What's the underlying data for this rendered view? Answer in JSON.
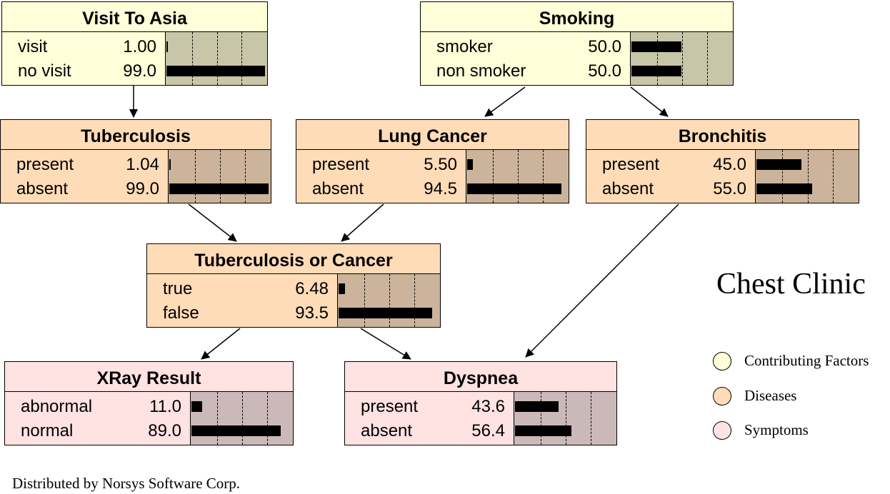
{
  "diagram_title": "Chest Clinic",
  "credit": "Distributed by Norsys Software Corp.",
  "colors": {
    "factor_bg": "#ffffd9",
    "factor_bar_bg": "#c8c6a8",
    "disease_bg": "#ffdcb8",
    "disease_bar_bg": "#cbb49b",
    "symptom_bg": "#ffe2e2",
    "symptom_bar_bg": "#cbb9b9"
  },
  "legend": [
    {
      "label": "Contributing Factors",
      "kind": "factor"
    },
    {
      "label": "Diseases",
      "kind": "disease"
    },
    {
      "label": "Symptoms",
      "kind": "symptom"
    }
  ],
  "nodes": [
    {
      "id": "visit",
      "name": "Visit To Asia",
      "kind": "factor",
      "states": [
        {
          "label": "visit",
          "value": "1.00",
          "pct": 1.0
        },
        {
          "label": "no visit",
          "value": "99.0",
          "pct": 99.0
        }
      ]
    },
    {
      "id": "smoking",
      "name": "Smoking",
      "kind": "factor",
      "states": [
        {
          "label": "smoker",
          "value": "50.0",
          "pct": 50.0
        },
        {
          "label": "non smoker",
          "value": "50.0",
          "pct": 50.0
        }
      ]
    },
    {
      "id": "tb",
      "name": "Tuberculosis",
      "kind": "disease",
      "states": [
        {
          "label": "present",
          "value": "1.04",
          "pct": 1.04
        },
        {
          "label": "absent",
          "value": "99.0",
          "pct": 99.0
        }
      ]
    },
    {
      "id": "cancer",
      "name": "Lung Cancer",
      "kind": "disease",
      "states": [
        {
          "label": "present",
          "value": "5.50",
          "pct": 5.5
        },
        {
          "label": "absent",
          "value": "94.5",
          "pct": 94.5
        }
      ]
    },
    {
      "id": "bronc",
      "name": "Bronchitis",
      "kind": "disease",
      "states": [
        {
          "label": "present",
          "value": "45.0",
          "pct": 45.0
        },
        {
          "label": "absent",
          "value": "55.0",
          "pct": 55.0
        }
      ]
    },
    {
      "id": "tbc",
      "name": "Tuberculosis or Cancer",
      "kind": "disease",
      "states": [
        {
          "label": "true",
          "value": "6.48",
          "pct": 6.48
        },
        {
          "label": "false",
          "value": "93.5",
          "pct": 93.5
        }
      ]
    },
    {
      "id": "xray",
      "name": "XRay Result",
      "kind": "symptom",
      "states": [
        {
          "label": "abnormal",
          "value": "11.0",
          "pct": 11.0
        },
        {
          "label": "normal",
          "value": "89.0",
          "pct": 89.0
        }
      ]
    },
    {
      "id": "dysp",
      "name": "Dyspnea",
      "kind": "symptom",
      "states": [
        {
          "label": "present",
          "value": "43.6",
          "pct": 43.6
        },
        {
          "label": "absent",
          "value": "56.4",
          "pct": 56.4
        }
      ]
    }
  ],
  "edges": [
    {
      "from": "visit",
      "to": "tb"
    },
    {
      "from": "smoking",
      "to": "cancer"
    },
    {
      "from": "smoking",
      "to": "bronc"
    },
    {
      "from": "tb",
      "to": "tbc"
    },
    {
      "from": "cancer",
      "to": "tbc"
    },
    {
      "from": "tbc",
      "to": "xray"
    },
    {
      "from": "tbc",
      "to": "dysp"
    },
    {
      "from": "bronc",
      "to": "dysp"
    }
  ]
}
